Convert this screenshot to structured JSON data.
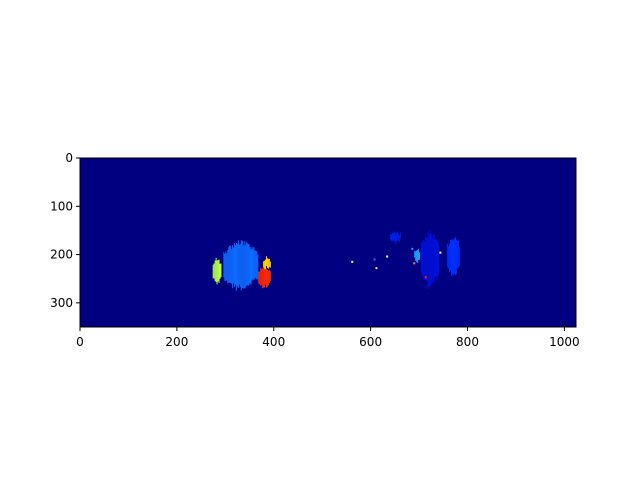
{
  "chart_data": {
    "type": "heatmap",
    "title": "",
    "xlabel": "",
    "ylabel": "",
    "xlim": [
      0,
      1024
    ],
    "ylim": [
      350,
      0
    ],
    "y_axis_inverted": true,
    "x_ticks": [
      0,
      200,
      400,
      600,
      800,
      1000
    ],
    "y_ticks": [
      0,
      100,
      200,
      300
    ],
    "colormap": "jet",
    "background_color": "#000080",
    "grid": false,
    "legend": "none",
    "blobs": [
      {
        "label": "left-cluster-main",
        "x_range": [
          296,
          366
        ],
        "y_range": [
          170,
          275
        ],
        "color": "#0f6cff"
      },
      {
        "label": "left-cluster-green",
        "x_range": [
          274,
          290
        ],
        "y_range": [
          205,
          262
        ],
        "color": "#b4ff4a"
      },
      {
        "label": "left-cluster-red",
        "x_range": [
          368,
          392
        ],
        "y_range": [
          222,
          270
        ],
        "color": "#ff2a00"
      },
      {
        "label": "left-cluster-yellow",
        "x_range": [
          378,
          392
        ],
        "y_range": [
          205,
          230
        ],
        "color": "#ffd300"
      },
      {
        "label": "right-cluster-a",
        "x_range": [
          704,
          740
        ],
        "y_range": [
          148,
          272
        ],
        "color": "#0010d8"
      },
      {
        "label": "right-cluster-b",
        "x_range": [
          758,
          782
        ],
        "y_range": [
          158,
          248
        ],
        "color": "#0030ff"
      },
      {
        "label": "right-cluster-c",
        "x_range": [
          640,
          660
        ],
        "y_range": [
          153,
          175
        ],
        "color": "#0020ee"
      },
      {
        "label": "right-cluster-speck",
        "x_range": [
          690,
          700
        ],
        "y_range": [
          185,
          215
        ],
        "color": "#1ca8ff"
      }
    ]
  }
}
